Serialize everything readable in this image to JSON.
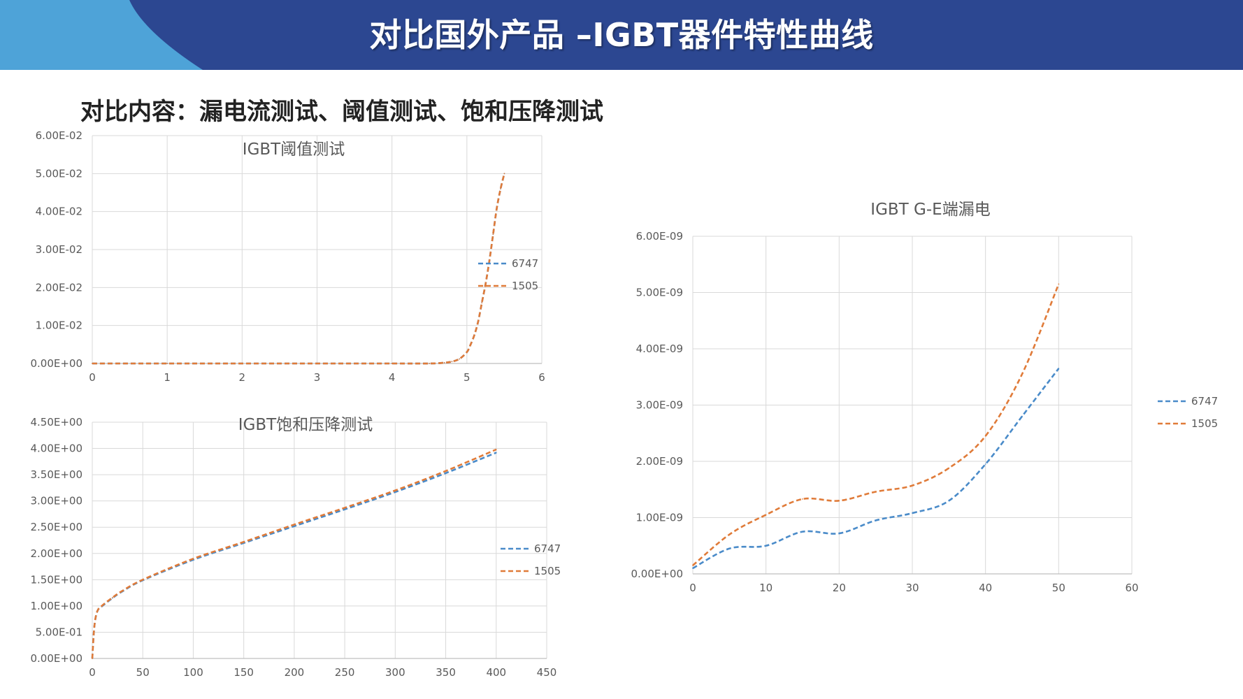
{
  "slide": {
    "title": "对比国外产品 –IGBT器件特性曲线",
    "subtitle": "对比内容：漏电流测试、阈值测试、饱和压降测试"
  },
  "colors": {
    "header_bg": "#2c4791",
    "header_accent": "#4ea3d8",
    "series_6747": "#4a8bc9",
    "series_1505": "#e07b39",
    "grid": "#d9d9d9"
  },
  "chart_data": [
    {
      "type": "line",
      "title": "IGBT阈值测试",
      "xlim": [
        0,
        6
      ],
      "ylim": [
        0,
        0.06
      ],
      "x_ticks": [
        "0",
        "1",
        "2",
        "3",
        "4",
        "5",
        "6"
      ],
      "y_ticks": [
        "0.00E+00",
        "1.00E-02",
        "2.00E-02",
        "3.00E-02",
        "4.00E-02",
        "5.00E-02",
        "6.00E-02"
      ],
      "grid": true,
      "legend_position": "right",
      "series": [
        {
          "name": "6747",
          "color": "#4a8bc9",
          "x": [
            0,
            1,
            2,
            3,
            4,
            4.5,
            4.7,
            4.8,
            4.9,
            5.0,
            5.05,
            5.1,
            5.15,
            5.2,
            5.25,
            5.3,
            5.35,
            5.4,
            5.45,
            5.5
          ],
          "y": [
            0,
            0,
            0,
            0,
            0,
            0,
            0.0002,
            0.0005,
            0.0012,
            0.003,
            0.005,
            0.0075,
            0.011,
            0.016,
            0.021,
            0.027,
            0.034,
            0.041,
            0.046,
            0.05
          ]
        },
        {
          "name": "1505",
          "color": "#e07b39",
          "x": [
            0,
            1,
            2,
            3,
            4,
            4.5,
            4.7,
            4.8,
            4.9,
            5.0,
            5.05,
            5.1,
            5.15,
            5.2,
            5.25,
            5.3,
            5.35,
            5.4,
            5.45,
            5.5
          ],
          "y": [
            0,
            0,
            0,
            0,
            0,
            0,
            0.0002,
            0.0005,
            0.0012,
            0.003,
            0.005,
            0.0075,
            0.011,
            0.016,
            0.021,
            0.027,
            0.034,
            0.041,
            0.046,
            0.05
          ]
        }
      ]
    },
    {
      "type": "line",
      "title": "IGBT饱和压降测试",
      "xlim": [
        0,
        450
      ],
      "ylim": [
        0,
        4.5
      ],
      "x_ticks": [
        "0",
        "50",
        "100",
        "150",
        "200",
        "250",
        "300",
        "350",
        "400",
        "450"
      ],
      "y_ticks": [
        "0.00E+00",
        "5.00E-01",
        "1.00E+00",
        "1.50E+00",
        "2.00E+00",
        "2.50E+00",
        "3.00E+00",
        "3.50E+00",
        "4.00E+00",
        "4.50E+00"
      ],
      "grid": true,
      "legend_position": "right",
      "series": [
        {
          "name": "6747",
          "color": "#4a8bc9",
          "x": [
            0,
            2,
            5,
            10,
            20,
            30,
            50,
            100,
            150,
            200,
            250,
            300,
            350,
            400
          ],
          "y": [
            0,
            0.6,
            0.9,
            1.0,
            1.15,
            1.28,
            1.49,
            1.88,
            2.2,
            2.52,
            2.84,
            3.17,
            3.53,
            3.92
          ]
        },
        {
          "name": "1505",
          "color": "#e07b39",
          "x": [
            0,
            2,
            5,
            10,
            20,
            30,
            50,
            100,
            150,
            200,
            250,
            300,
            350,
            400
          ],
          "y": [
            0,
            0.6,
            0.9,
            1.01,
            1.16,
            1.29,
            1.5,
            1.9,
            2.22,
            2.55,
            2.87,
            3.2,
            3.57,
            3.98
          ]
        }
      ]
    },
    {
      "type": "line",
      "title": "IGBT G-E端漏电",
      "xlim": [
        0,
        60
      ],
      "ylim": [
        0,
        6e-09
      ],
      "x_ticks": [
        "0",
        "10",
        "20",
        "30",
        "40",
        "50",
        "60"
      ],
      "y_ticks": [
        "0.00E+00",
        "1.00E-09",
        "2.00E-09",
        "3.00E-09",
        "4.00E-09",
        "5.00E-09",
        "6.00E-09"
      ],
      "grid": true,
      "legend_position": "right",
      "series": [
        {
          "name": "6747",
          "color": "#4a8bc9",
          "x": [
            0,
            5,
            10,
            15,
            20,
            25,
            30,
            35,
            40,
            45,
            50
          ],
          "y": [
            1e-10,
            4.5e-10,
            5e-10,
            7.5e-10,
            7.2e-10,
            9.5e-10,
            1.08e-09,
            1.3e-09,
            1.95e-09,
            2.8e-09,
            3.65e-09
          ]
        },
        {
          "name": "1505",
          "color": "#e07b39",
          "x": [
            0,
            5,
            10,
            15,
            20,
            25,
            30,
            35,
            40,
            45,
            50
          ],
          "y": [
            1.5e-10,
            7e-10,
            1.05e-09,
            1.33e-09,
            1.3e-09,
            1.46e-09,
            1.57e-09,
            1.88e-09,
            2.45e-09,
            3.55e-09,
            5.15e-09
          ]
        }
      ]
    }
  ]
}
